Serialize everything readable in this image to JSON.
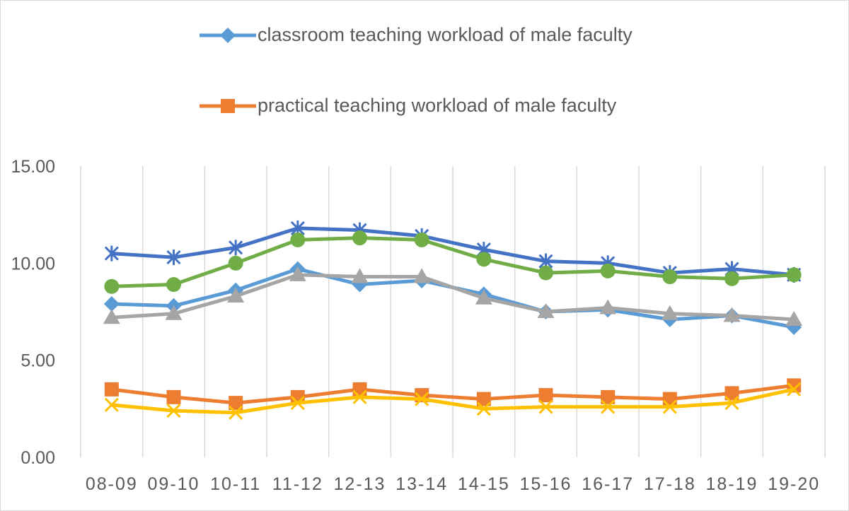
{
  "chart_data": {
    "type": "line",
    "categories": [
      "08-09",
      "09-10",
      "10-11",
      "11-12",
      "12-13",
      "13-14",
      "14-15",
      "15-16",
      "16-17",
      "17-18",
      "18-19",
      "19-20"
    ],
    "ylim": [
      0,
      15
    ],
    "yticks": [
      "0.00",
      "5.00",
      "10.00",
      "15.00"
    ],
    "ytick_values": [
      0,
      5,
      10,
      15
    ],
    "grid": "vertical",
    "legend_placement": "top",
    "series": [
      {
        "name": "classroom teaching workload of male faculty",
        "color": "#5b9bd5",
        "marker": "diamond",
        "values": [
          7.9,
          7.8,
          8.6,
          9.7,
          8.9,
          9.1,
          8.4,
          7.5,
          7.6,
          7.1,
          7.3,
          6.7
        ]
      },
      {
        "name": "practical teaching workload of male faculty",
        "color": "#ed7d31",
        "marker": "square",
        "values": [
          3.5,
          3.1,
          2.8,
          3.1,
          3.5,
          3.2,
          3.0,
          3.2,
          3.1,
          3.0,
          3.3,
          3.7
        ]
      },
      {
        "color": "#a5a5a5",
        "marker": "triangle",
        "values": [
          7.2,
          7.4,
          8.3,
          9.4,
          9.3,
          9.3,
          8.2,
          7.5,
          7.7,
          7.4,
          7.3,
          7.1
        ]
      },
      {
        "color": "#ffc000",
        "marker": "x",
        "values": [
          2.7,
          2.4,
          2.3,
          2.8,
          3.1,
          3.0,
          2.5,
          2.6,
          2.6,
          2.6,
          2.8,
          3.5
        ]
      },
      {
        "color": "#4472c4",
        "marker": "star",
        "values": [
          10.5,
          10.3,
          10.8,
          11.8,
          11.7,
          11.4,
          10.7,
          10.1,
          10.0,
          9.5,
          9.7,
          9.4
        ]
      },
      {
        "color": "#70ad47",
        "marker": "circle",
        "values": [
          8.8,
          8.9,
          10.0,
          11.2,
          11.3,
          11.2,
          10.2,
          9.5,
          9.6,
          9.3,
          9.2,
          9.4
        ]
      }
    ]
  }
}
